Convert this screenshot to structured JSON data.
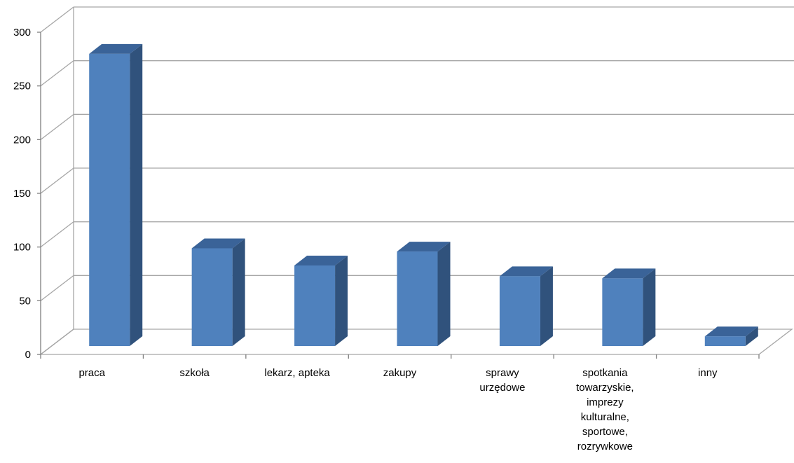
{
  "chart_data": {
    "type": "bar",
    "style": "3d-column",
    "title": "",
    "xlabel": "",
    "ylabel": "",
    "ylim": [
      0,
      300
    ],
    "yticks": [
      0,
      50,
      100,
      150,
      200,
      250,
      300
    ],
    "grid": true,
    "legend": "none",
    "categories": [
      [
        "praca"
      ],
      [
        "szkoła"
      ],
      [
        "lekarz, apteka"
      ],
      [
        "zakupy"
      ],
      [
        "sprawy",
        "urzędowe"
      ],
      [
        "spotkania",
        "towarzyskie,",
        "imprezy",
        "kulturalne,",
        "sportowe,",
        "rozrywkowe"
      ],
      [
        "inny"
      ]
    ],
    "values": [
      272,
      91,
      75,
      88,
      65,
      63,
      9
    ],
    "colors": {
      "bar_front": "#4f81bd",
      "bar_side": "#30527c",
      "bar_top": "#3a6398",
      "grid": "#a6a6a6",
      "axis": "#7f7f7f"
    }
  }
}
